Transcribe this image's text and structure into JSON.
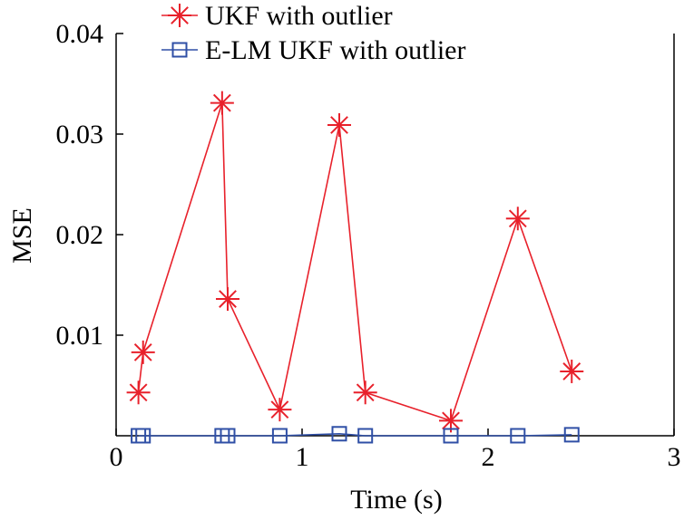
{
  "chart_data": {
    "type": "line",
    "xlabel": "Time (s)",
    "ylabel": "MSE",
    "xlim": [
      0,
      3
    ],
    "ylim": [
      0,
      0.04
    ],
    "x_ticks": [
      0,
      1,
      2,
      3
    ],
    "x_tick_labels": [
      "0",
      "1",
      "2",
      "3"
    ],
    "y_ticks": [
      0.01,
      0.02,
      0.03,
      0.04
    ],
    "y_tick_labels": [
      "0.01",
      "0.02",
      "0.03",
      "0.04"
    ],
    "legend_position": "top-left",
    "grid": false,
    "series": [
      {
        "name": "UKF with outlier",
        "color": "#e8212b",
        "marker": "asterisk",
        "x": [
          0.12,
          0.145,
          0.57,
          0.6,
          0.88,
          1.2,
          1.34,
          1.8,
          2.16,
          2.45
        ],
        "y": [
          0.0043,
          0.0083,
          0.0331,
          0.0136,
          0.0026,
          0.0309,
          0.0043,
          0.0015,
          0.0216,
          0.0064
        ]
      },
      {
        "name": "E-LM UKF with outlier",
        "color": "#2f4fa6",
        "marker": "square",
        "x": [
          0.12,
          0.145,
          0.57,
          0.6,
          0.88,
          1.2,
          1.34,
          1.8,
          2.16,
          2.45
        ],
        "y": [
          0.0,
          0.0,
          0.0,
          0.0,
          0.0,
          0.0002,
          0.0,
          0.0,
          0.0,
          0.0001
        ]
      }
    ]
  }
}
